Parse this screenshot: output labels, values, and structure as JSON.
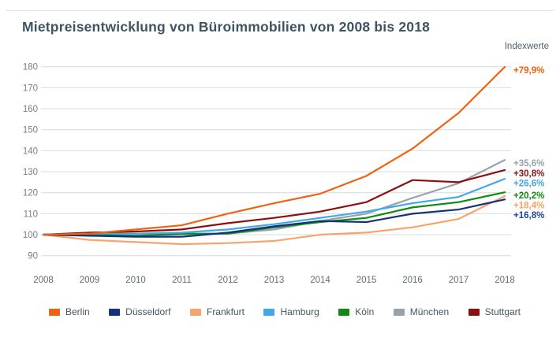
{
  "page": {
    "title": "Mietpreisentwicklung von Büroimmobilien von 2008 bis 2018",
    "axis_note": "Indexwerte"
  },
  "chart_data": {
    "type": "line",
    "x": [
      2008,
      2009,
      2010,
      2011,
      2012,
      2013,
      2014,
      2015,
      2016,
      2017,
      2018
    ],
    "ylim": [
      90,
      180
    ],
    "ytick_step": 10,
    "grid": "horizontal",
    "legend_position": "bottom",
    "grid_color": "#d6dbdf",
    "series": [
      {
        "name": "Berlin",
        "color": "#ef6210",
        "label_color": "#f25c0a",
        "change_label": "+79,9%",
        "values": [
          100,
          100.5,
          102.5,
          104.5,
          110,
          115,
          119.5,
          128,
          141,
          158,
          179.9
        ]
      },
      {
        "name": "Düsseldorf",
        "color": "#15307d",
        "label_color": "#1c44a8",
        "change_label": "+16,8%",
        "values": [
          100,
          99.5,
          99,
          99,
          101,
          104,
          106.5,
          106,
          110,
          112,
          116.8
        ]
      },
      {
        "name": "Frankfurt",
        "color": "#f9a26b",
        "label_color": "#f9a162",
        "change_label": "+18,4%",
        "values": [
          100,
          97.5,
          96.5,
          95.5,
          96,
          97,
          100,
          101,
          103.5,
          107.5,
          118.4
        ]
      },
      {
        "name": "Hamburg",
        "color": "#44a8e8",
        "label_color": "#3fa3e0",
        "change_label": "+26,6%",
        "values": [
          100,
          100.5,
          100.5,
          101,
          102.5,
          105,
          108,
          111,
          115,
          118,
          126.6
        ]
      },
      {
        "name": "Köln",
        "color": "#108a10",
        "label_color": "#0b8a0b",
        "change_label": "+20,2%",
        "values": [
          100,
          100,
          99.5,
          100.5,
          100.5,
          103.5,
          106,
          108,
          113,
          115.5,
          120.2
        ]
      },
      {
        "name": "München",
        "color": "#98a2ab",
        "label_color": "#97a1aa",
        "change_label": "+35,6%",
        "values": [
          100,
          100,
          99.5,
          100,
          100.5,
          102.5,
          106.5,
          110,
          117.5,
          124.5,
          135.6
        ]
      },
      {
        "name": "Stuttgart",
        "color": "#8c1010",
        "label_color": "#8e0f10",
        "change_label": "+30,8%",
        "values": [
          100,
          101,
          101.5,
          102.5,
          105.5,
          108,
          111,
          115.5,
          126,
          125,
          130.8
        ]
      }
    ]
  }
}
